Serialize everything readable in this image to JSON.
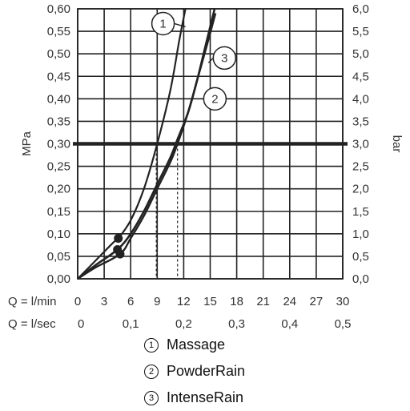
{
  "chart_data": {
    "type": "line",
    "left_axis": {
      "label": "MPa",
      "ticks": [
        "0,00",
        "0,05",
        "0,10",
        "0,15",
        "0,20",
        "0,25",
        "0,30",
        "0,35",
        "0,40",
        "0,45",
        "0,50",
        "0,55",
        "0,60"
      ],
      "range": [
        0,
        0.6
      ]
    },
    "right_axis": {
      "label": "bar",
      "ticks": [
        "0,0",
        "0,5",
        "1,0",
        "1,5",
        "2,0",
        "2,5",
        "3,0",
        "3,5",
        "4,0",
        "4,5",
        "5,0",
        "5,5",
        "6,0"
      ],
      "range": [
        0,
        6
      ]
    },
    "x_axis_lmin": {
      "label": "Q = l/min",
      "ticks": [
        "0",
        "3",
        "6",
        "9",
        "12",
        "15",
        "18",
        "21",
        "24",
        "27",
        "30"
      ],
      "range": [
        0,
        30
      ]
    },
    "x_axis_lsec": {
      "label": "Q = l/sec",
      "ticks": [
        "0",
        "0,1",
        "0,2",
        "0,3",
        "0,4",
        "0,5"
      ],
      "tick_values_lmin": [
        0,
        6,
        12,
        18,
        24,
        30
      ]
    },
    "grid": true,
    "reference_line": {
      "axis": "y",
      "value": 0.3
    },
    "series": [
      {
        "name": "Massage",
        "marker": "1",
        "x": [
          0,
          2,
          4,
          4.6,
          6,
          7.5,
          9,
          10.5,
          11.5,
          12.2
        ],
        "y": [
          0,
          0.04,
          0.08,
          0.09,
          0.13,
          0.2,
          0.3,
          0.42,
          0.53,
          0.6
        ]
      },
      {
        "name": "PowderRain",
        "marker": "2",
        "x": [
          0,
          2,
          4.5,
          6,
          7.5,
          9,
          10.5,
          11.3,
          12.5,
          13.5,
          14.5,
          15.5
        ],
        "y": [
          0,
          0.03,
          0.065,
          0.1,
          0.15,
          0.21,
          0.27,
          0.31,
          0.37,
          0.44,
          0.52,
          0.6
        ]
      },
      {
        "name": "IntenseRain",
        "marker": "3",
        "x": [
          0,
          2,
          4.8,
          6,
          7.5,
          9,
          10.5,
          11.3,
          12.5,
          13.5,
          14.5,
          15.6
        ],
        "y": [
          0,
          0.025,
          0.055,
          0.09,
          0.14,
          0.2,
          0.26,
          0.3,
          0.37,
          0.44,
          0.51,
          0.59
        ]
      }
    ],
    "dots": [
      {
        "x": 4.6,
        "y": 0.09
      },
      {
        "x": 4.5,
        "y": 0.065
      },
      {
        "x": 4.8,
        "y": 0.055
      }
    ],
    "drop_lines": [
      {
        "x": 8.9,
        "y": 0.3
      },
      {
        "x": 11.3,
        "y": 0.3
      }
    ],
    "labels": [
      {
        "marker": "1",
        "at_x": 12.2,
        "at_y": 0.56
      },
      {
        "marker": "2",
        "at_x": 13.9,
        "at_y": 0.4
      },
      {
        "marker": "3",
        "at_x": 14.8,
        "at_y": 0.48
      }
    ]
  },
  "legend": [
    {
      "number": "1",
      "label": "Massage"
    },
    {
      "number": "2",
      "label": "PowderRain"
    },
    {
      "number": "3",
      "label": "IntenseRain"
    }
  ]
}
